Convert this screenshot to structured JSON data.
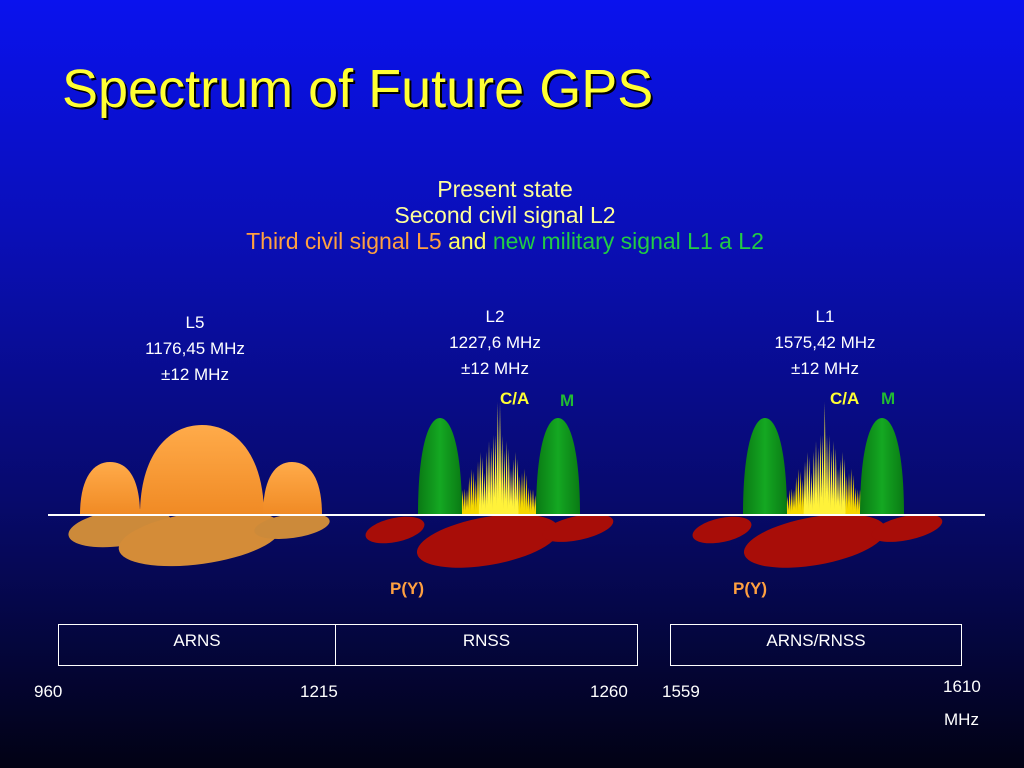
{
  "title": "Spectrum of Future GPS",
  "subtitle": {
    "line1": "Present state",
    "line2": "Second civil signal L2",
    "line3_a": "Third civil signal L5",
    "line3_b": "and",
    "line3_c": "new military signal L1 a L2"
  },
  "bands": [
    {
      "name": "L5",
      "freq": "1176,45 MHz",
      "width": "±12 MHz"
    },
    {
      "name": "L2",
      "freq": "1227,6 MHz",
      "width": "±12 MHz"
    },
    {
      "name": "L1",
      "freq": "1575,42 MHz",
      "width": "±12 MHz"
    }
  ],
  "signals": {
    "ca": "C/A",
    "m": "M",
    "py": "P(Y)"
  },
  "allocations": {
    "arns": "ARNS",
    "rnss": "RNSS",
    "arns_rnss": "ARNS/RNSS"
  },
  "frequencies": {
    "f960": "960",
    "f1215": "1215",
    "f1260": "1260",
    "f1559": "1559",
    "f1610": "1610",
    "unit": "MHz"
  },
  "colors": {
    "l5_lobe": "#ff9a33",
    "l5_lower": "#d98a2e",
    "military_m": "#0f9a1c",
    "ca_signal": "#ffee00",
    "py_lower": "#b00a00",
    "title": "#ffff33"
  }
}
